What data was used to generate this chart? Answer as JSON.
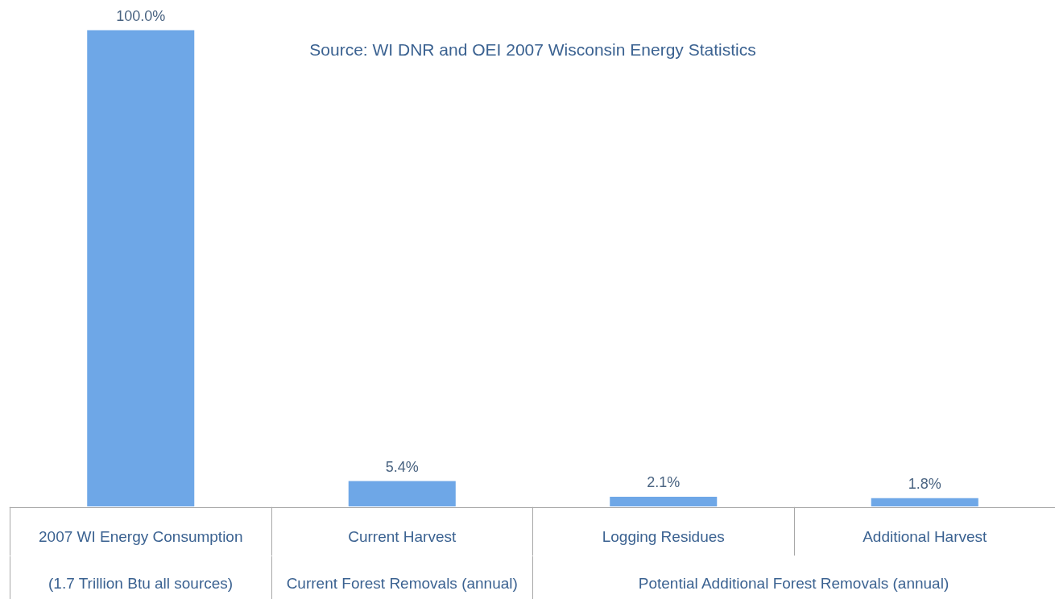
{
  "chart_data": {
    "type": "bar",
    "categories": [
      "2007 WI Energy Consumption",
      "Current Harvest",
      "Logging Residues",
      "Additional Harvest"
    ],
    "values": [
      100,
      5.4,
      2.1,
      1.8
    ],
    "value_labels": [
      "100.0%",
      "5.4%",
      "2.1%",
      "1.8%"
    ],
    "color": "#6ea7e7",
    "annotations": [
      "Source: WI DNR and OEI 2007 Wisconsin Energy Statistics",
      "(1.7 Trillion Btu all sources)",
      "Current Forest Removals (annual)",
      "Potential Additional Forest Removals (annual)"
    ]
  }
}
